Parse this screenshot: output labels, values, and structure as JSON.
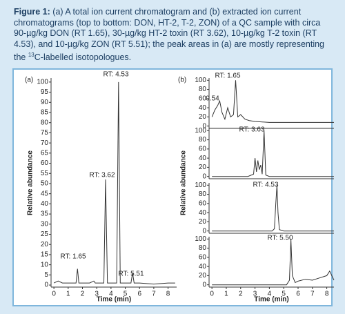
{
  "caption": {
    "label": "Figure 1:",
    "text": "(a) A total ion current chromatogram and (b) extracted ion current chromatograms (top to bottom: DON, HT-2, T-2, ZON) of a QC sample with circa 90-µg/kg DON (RT 1.65), 30-µg/kg HT-2 toxin (RT 3.62), 10-µg/kg T-2 toxin (RT 4.53), and 10-µg/kg ZON (RT 5.51); the peak areas in (a) are mostly representing the ",
    "superscript": "13",
    "text_end": "C-labelled isotopologues."
  },
  "chart_data": [
    {
      "type": "line",
      "panel_label": "(a)",
      "x_label": "Time (min)",
      "y_label": "Relative abundance",
      "color": "#333333",
      "x": [
        0,
        0.3,
        0.6,
        1.0,
        1.4,
        1.55,
        1.65,
        1.75,
        2.0,
        2.5,
        2.8,
        2.9,
        3.0,
        3.3,
        3.5,
        3.62,
        3.75,
        4.0,
        4.4,
        4.53,
        4.65,
        5.0,
        5.4,
        5.51,
        5.62,
        6.0,
        7.0,
        8.0,
        8.5
      ],
      "values": [
        1,
        2,
        1,
        1,
        1,
        1,
        8,
        1,
        1,
        1,
        2,
        1,
        1,
        1,
        1,
        52,
        1,
        1,
        1,
        100,
        1,
        1,
        1,
        6,
        1,
        1,
        0.5,
        1,
        1
      ],
      "xlim": [
        -0.2,
        8.6
      ],
      "xticks": [
        0,
        1,
        2,
        3,
        4,
        5,
        6,
        7,
        8
      ],
      "ylim": [
        -1,
        102
      ],
      "yticks": [
        0,
        5,
        10,
        15,
        20,
        25,
        30,
        35,
        40,
        45,
        50,
        55,
        60,
        65,
        70,
        75,
        80,
        85,
        90,
        95,
        100
      ],
      "annotations": [
        "RT: 4.53",
        "RT: 3.62",
        "RT: 1.65",
        "RT: 5.51"
      ]
    },
    {
      "type": "stacked-line",
      "panel_label": "(b)",
      "x_label": "Time (min)",
      "y_label": "Relative abundance",
      "color": "#333333",
      "xlim": [
        -0.2,
        8.5
      ],
      "xticks": [
        0,
        1,
        2,
        3,
        4,
        5,
        6,
        7,
        8
      ],
      "panels": [
        {
          "x": [
            0,
            0.2,
            0.4,
            0.54,
            0.7,
            0.9,
            1.1,
            1.3,
            1.5,
            1.65,
            1.8,
            2.0,
            2.3,
            2.6,
            3,
            4,
            5,
            6,
            7,
            8,
            8.5
          ],
          "values": [
            20,
            35,
            45,
            55,
            30,
            15,
            40,
            20,
            25,
            100,
            20,
            25,
            15,
            12,
            10,
            8,
            8,
            8,
            8,
            8,
            8
          ],
          "ylim": [
            -5,
            105
          ],
          "yticks": [
            0,
            20,
            40,
            60,
            80,
            100
          ],
          "annotations": [
            "RT: 1.65",
            "0.54"
          ]
        },
        {
          "x": [
            0,
            2.5,
            2.9,
            3.0,
            3.1,
            3.2,
            3.3,
            3.4,
            3.5,
            3.63,
            3.75,
            4,
            8.5
          ],
          "values": [
            0,
            0,
            5,
            40,
            10,
            35,
            15,
            25,
            5,
            100,
            3,
            0,
            0
          ],
          "ylim": [
            -5,
            105
          ],
          "yticks": [
            0,
            20,
            40,
            60,
            80,
            100
          ],
          "annotations": [
            "RT: 3.63"
          ]
        },
        {
          "x": [
            0,
            4.2,
            4.35,
            4.45,
            4.53,
            4.6,
            4.7,
            5,
            8.5
          ],
          "values": [
            0,
            0,
            5,
            60,
            100,
            40,
            3,
            0,
            0
          ],
          "ylim": [
            -5,
            105
          ],
          "yticks": [
            0,
            20,
            40,
            60,
            80,
            100
          ],
          "annotations": [
            "RT: 4.53"
          ]
        },
        {
          "x": [
            0,
            5.2,
            5.4,
            5.5,
            5.6,
            5.8,
            6,
            6.5,
            7,
            7.5,
            8,
            8.2,
            8.5
          ],
          "values": [
            0,
            0,
            10,
            100,
            20,
            5,
            8,
            12,
            10,
            15,
            20,
            30,
            10
          ],
          "ylim": [
            -5,
            105
          ],
          "yticks": [
            0,
            20,
            40,
            60,
            80,
            100
          ],
          "annotations": [
            "RT: 5.50"
          ]
        }
      ]
    }
  ]
}
